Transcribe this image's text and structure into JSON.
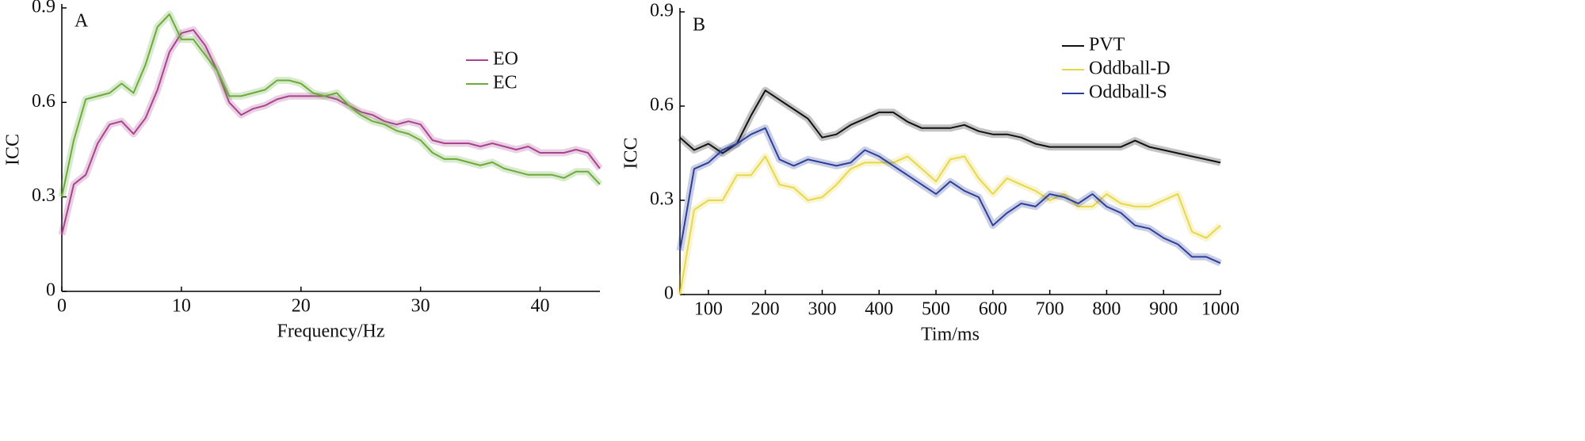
{
  "chart_data": [
    {
      "type": "line",
      "panel_label": "A",
      "xlabel": "Frequency/Hz",
      "ylabel": "ICC",
      "x": [
        0,
        1,
        2,
        3,
        4,
        5,
        6,
        7,
        8,
        9,
        10,
        11,
        12,
        13,
        14,
        15,
        16,
        17,
        18,
        19,
        20,
        21,
        22,
        23,
        24,
        25,
        26,
        27,
        28,
        29,
        30,
        31,
        32,
        33,
        34,
        35,
        36,
        37,
        38,
        39,
        40,
        41,
        42,
        43,
        44,
        45
      ],
      "xlim": [
        0,
        45
      ],
      "xticks": [
        0,
        10,
        20,
        30,
        40
      ],
      "ylim": [
        0,
        0.9
      ],
      "yticks": [
        0,
        0.3,
        0.6,
        0.9
      ],
      "legend_position": "upper right",
      "series": [
        {
          "name": "EO",
          "color": "#a9438f",
          "values": [
            0.18,
            0.34,
            0.37,
            0.47,
            0.53,
            0.54,
            0.5,
            0.55,
            0.64,
            0.76,
            0.82,
            0.83,
            0.78,
            0.7,
            0.6,
            0.56,
            0.58,
            0.59,
            0.61,
            0.62,
            0.62,
            0.62,
            0.62,
            0.61,
            0.59,
            0.57,
            0.56,
            0.54,
            0.53,
            0.54,
            0.53,
            0.48,
            0.47,
            0.47,
            0.47,
            0.46,
            0.47,
            0.46,
            0.45,
            0.46,
            0.44,
            0.44,
            0.44,
            0.45,
            0.44,
            0.39
          ]
        },
        {
          "name": "EC",
          "color": "#6aab3a",
          "values": [
            0.3,
            0.48,
            0.61,
            0.62,
            0.63,
            0.66,
            0.63,
            0.72,
            0.84,
            0.88,
            0.8,
            0.8,
            0.75,
            0.7,
            0.62,
            0.62,
            0.63,
            0.64,
            0.67,
            0.67,
            0.66,
            0.63,
            0.62,
            0.63,
            0.59,
            0.56,
            0.54,
            0.53,
            0.51,
            0.5,
            0.48,
            0.44,
            0.42,
            0.42,
            0.41,
            0.4,
            0.41,
            0.39,
            0.38,
            0.37,
            0.37,
            0.37,
            0.36,
            0.38,
            0.38,
            0.34
          ]
        }
      ]
    },
    {
      "type": "line",
      "panel_label": "B",
      "xlabel": "Tim/ms",
      "ylabel": "ICC",
      "x": [
        50,
        75,
        100,
        125,
        150,
        175,
        200,
        225,
        250,
        275,
        300,
        325,
        350,
        375,
        400,
        425,
        450,
        475,
        500,
        525,
        550,
        575,
        600,
        625,
        650,
        675,
        700,
        725,
        750,
        775,
        800,
        825,
        850,
        875,
        900,
        925,
        950,
        975,
        1000
      ],
      "xlim": [
        50,
        1000
      ],
      "xticks": [
        100,
        200,
        300,
        400,
        500,
        600,
        700,
        800,
        900,
        1000
      ],
      "ylim": [
        0,
        0.9
      ],
      "yticks": [
        0,
        0.3,
        0.6,
        0.9
      ],
      "legend_position": "upper right",
      "series": [
        {
          "name": "PVT",
          "color": "#111111",
          "values": [
            0.5,
            0.46,
            0.48,
            0.45,
            0.48,
            0.57,
            0.65,
            0.62,
            0.59,
            0.56,
            0.5,
            0.51,
            0.54,
            0.56,
            0.58,
            0.58,
            0.55,
            0.53,
            0.53,
            0.53,
            0.54,
            0.52,
            0.51,
            0.51,
            0.5,
            0.48,
            0.47,
            0.47,
            0.47,
            0.47,
            0.47,
            0.47,
            0.49,
            0.47,
            0.46,
            0.45,
            0.44,
            0.43,
            0.42
          ]
        },
        {
          "name": "Oddball-D",
          "color": "#e6d84a",
          "values": [
            0.0,
            0.27,
            0.3,
            0.3,
            0.38,
            0.38,
            0.44,
            0.35,
            0.34,
            0.3,
            0.31,
            0.35,
            0.4,
            0.42,
            0.42,
            0.42,
            0.44,
            0.4,
            0.36,
            0.43,
            0.44,
            0.37,
            0.32,
            0.37,
            0.35,
            0.33,
            0.3,
            0.32,
            0.28,
            0.28,
            0.32,
            0.29,
            0.28,
            0.28,
            0.3,
            0.32,
            0.2,
            0.18,
            0.22
          ]
        },
        {
          "name": "Oddball-S",
          "color": "#2c3f9a",
          "values": [
            0.14,
            0.4,
            0.42,
            0.46,
            0.48,
            0.51,
            0.53,
            0.43,
            0.41,
            0.43,
            0.42,
            0.41,
            0.42,
            0.46,
            0.44,
            0.41,
            0.38,
            0.35,
            0.32,
            0.36,
            0.33,
            0.31,
            0.22,
            0.26,
            0.29,
            0.28,
            0.32,
            0.31,
            0.29,
            0.32,
            0.28,
            0.26,
            0.22,
            0.21,
            0.18,
            0.16,
            0.12,
            0.12,
            0.1
          ]
        }
      ]
    }
  ]
}
